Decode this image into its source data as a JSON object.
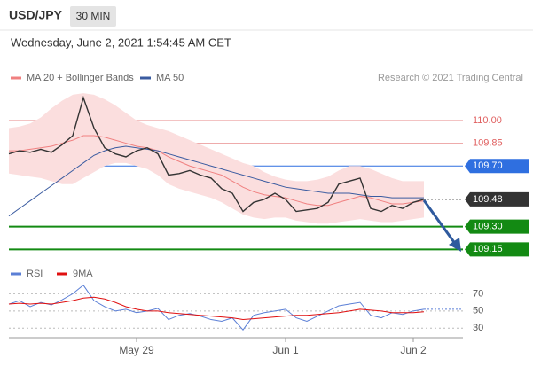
{
  "header": {
    "symbol": "USD/JPY",
    "interval": "30 MIN",
    "timestamp": "Wednesday, June 2, 2021 1:54:45 AM CET"
  },
  "chart_data": [
    {
      "type": "line",
      "source": "Research © 2021 Trading Central",
      "ylim": [
        109.07,
        110.21
      ],
      "close_color": "#333333",
      "values": [
        109.78,
        109.8,
        109.79,
        109.81,
        109.79,
        109.84,
        109.9,
        110.15,
        109.95,
        109.82,
        109.78,
        109.76,
        109.8,
        109.82,
        109.78,
        109.64,
        109.65,
        109.67,
        109.64,
        109.62,
        109.55,
        109.52,
        109.4,
        109.46,
        109.48,
        109.52,
        109.48,
        109.4,
        109.41,
        109.42,
        109.46,
        109.58,
        109.6,
        109.62,
        109.42,
        109.4,
        109.44,
        109.42,
        109.46,
        109.48
      ],
      "band": {
        "color": "#fbdede",
        "upper": [
          109.95,
          109.96,
          109.98,
          110.02,
          110.08,
          110.13,
          110.17,
          110.18,
          110.17,
          110.14,
          110.1,
          110.05,
          110.0,
          109.97,
          109.95,
          109.93,
          109.9,
          109.87,
          109.84,
          109.81,
          109.78,
          109.75,
          109.72,
          109.7,
          109.66,
          109.63,
          109.61,
          109.6,
          109.6,
          109.61,
          109.63,
          109.67,
          109.7,
          109.7,
          109.68,
          109.65,
          109.62,
          109.6,
          109.6,
          109.6
        ],
        "lower": [
          109.65,
          109.64,
          109.63,
          109.62,
          109.6,
          109.58,
          109.58,
          109.62,
          109.66,
          109.7,
          109.72,
          109.72,
          109.7,
          109.68,
          109.64,
          109.58,
          109.55,
          109.53,
          109.51,
          109.49,
          109.46,
          109.42,
          109.38,
          109.36,
          109.35,
          109.36,
          109.36,
          109.34,
          109.33,
          109.32,
          109.32,
          109.33,
          109.34,
          109.35,
          109.34,
          109.33,
          109.33,
          109.34,
          109.35,
          109.36
        ]
      },
      "series": [
        {
          "name": "MA 20 + Bollinger Bands",
          "color": "#f08080",
          "values": [
            109.8,
            109.8,
            109.81,
            109.82,
            109.83,
            109.85,
            109.87,
            109.9,
            109.9,
            109.89,
            109.87,
            109.85,
            109.83,
            109.82,
            109.8,
            109.76,
            109.73,
            109.7,
            109.68,
            109.66,
            109.64,
            109.6,
            109.56,
            109.53,
            109.51,
            109.5,
            109.49,
            109.47,
            109.45,
            109.44,
            109.44,
            109.46,
            109.48,
            109.5,
            109.49,
            109.47,
            109.45,
            109.45,
            109.46,
            109.47
          ]
        },
        {
          "name": "MA 50",
          "color": "#3a5ba0",
          "values": [
            109.37,
            109.42,
            109.47,
            109.52,
            109.57,
            109.62,
            109.67,
            109.72,
            109.77,
            109.8,
            109.82,
            109.83,
            109.82,
            109.81,
            109.8,
            109.78,
            109.76,
            109.74,
            109.72,
            109.7,
            109.68,
            109.66,
            109.64,
            109.62,
            109.6,
            109.58,
            109.56,
            109.55,
            109.54,
            109.53,
            109.52,
            109.52,
            109.52,
            109.51,
            109.5,
            109.5,
            109.49,
            109.49,
            109.49,
            109.49
          ]
        }
      ],
      "levels": [
        {
          "value": {
            "value": 110.0,
            "label": "110.00"
          },
          "color": "#e06060",
          "kind": "line"
        },
        {
          "value": 109.85,
          "color": "#e06060",
          "kind": "line"
        },
        {
          "value": {
            "value": 109.7,
            "label": "109.70"
          },
          "color": "#2f6fe0",
          "kind": "box"
        },
        {
          "value": 109.48,
          "color": "#333333",
          "kind": "current"
        },
        {
          "value": {
            "value": 109.3,
            "label": "109.30"
          },
          "color": "#138a13",
          "kind": "box"
        },
        {
          "value": 109.15,
          "color": "#138a13",
          "kind": "box"
        }
      ]
    },
    {
      "type": "line",
      "ylim": [
        20,
        92
      ],
      "yticks": [
        30,
        50,
        70
      ],
      "grid": true,
      "categories": [
        null,
        null,
        null,
        null,
        null,
        null,
        null,
        null,
        null,
        null,
        null,
        null,
        "May 29",
        null,
        null,
        null,
        null,
        null,
        null,
        null,
        null,
        null,
        null,
        null,
        null,
        null,
        "Jun 1",
        null,
        null,
        null,
        null,
        null,
        null,
        null,
        null,
        null,
        null,
        null,
        "Jun 2",
        null
      ],
      "series": [
        {
          "name": "RSI",
          "color": "#5b7fd6",
          "values": [
            58,
            62,
            55,
            60,
            57,
            63,
            70,
            80,
            62,
            55,
            50,
            52,
            48,
            50,
            53,
            40,
            45,
            47,
            44,
            40,
            38,
            42,
            28,
            45,
            48,
            50,
            52,
            42,
            38,
            44,
            50,
            56,
            58,
            60,
            45,
            42,
            48,
            46,
            50,
            52
          ]
        },
        {
          "name": "9MA",
          "color": "#e01010",
          "values": [
            58,
            59,
            58,
            59,
            58,
            60,
            62,
            65,
            66,
            64,
            60,
            55,
            52,
            50,
            50,
            48,
            47,
            46,
            45,
            44,
            43,
            42,
            40,
            41,
            42,
            43,
            44,
            45,
            45,
            46,
            47,
            48,
            50,
            52,
            51,
            50,
            48,
            48,
            48,
            49
          ]
        }
      ]
    }
  ]
}
